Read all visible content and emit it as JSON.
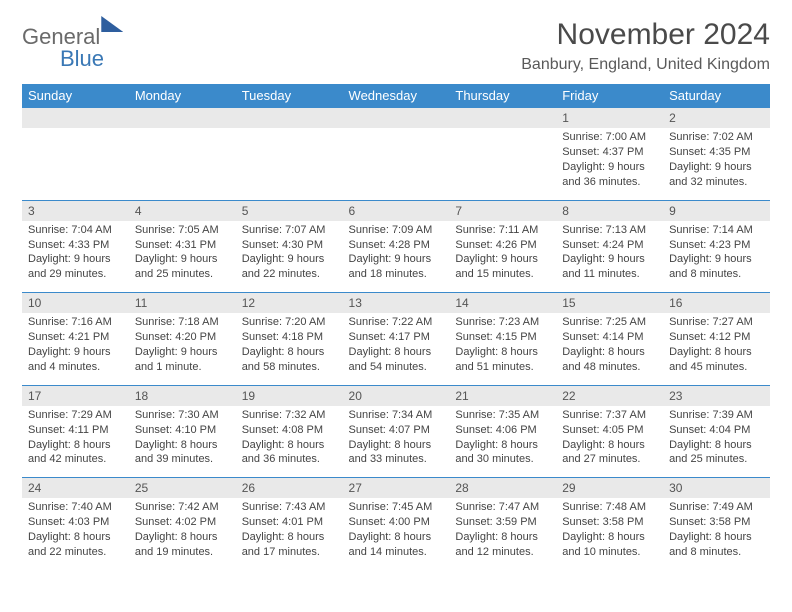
{
  "logo": {
    "word1": "General",
    "word2": "Blue"
  },
  "title": "November 2024",
  "location": "Banbury, England, United Kingdom",
  "colors": {
    "header_bg": "#3b8acb",
    "header_text": "#ffffff",
    "daynum_bg": "#e9e9e9",
    "rule": "#3b8acb",
    "body_text": "#444444",
    "logo_gray": "#6a6a6a",
    "logo_blue": "#3a78b5"
  },
  "typography": {
    "title_fontsize": 30,
    "location_fontsize": 16,
    "header_fontsize": 13,
    "daynum_fontsize": 12,
    "cell_fontsize": 11
  },
  "weekdays": [
    "Sunday",
    "Monday",
    "Tuesday",
    "Wednesday",
    "Thursday",
    "Friday",
    "Saturday"
  ],
  "weeks": [
    [
      null,
      null,
      null,
      null,
      null,
      {
        "n": "1",
        "sr": "Sunrise: 7:00 AM",
        "ss": "Sunset: 4:37 PM",
        "dl": "Daylight: 9 hours and 36 minutes."
      },
      {
        "n": "2",
        "sr": "Sunrise: 7:02 AM",
        "ss": "Sunset: 4:35 PM",
        "dl": "Daylight: 9 hours and 32 minutes."
      }
    ],
    [
      {
        "n": "3",
        "sr": "Sunrise: 7:04 AM",
        "ss": "Sunset: 4:33 PM",
        "dl": "Daylight: 9 hours and 29 minutes."
      },
      {
        "n": "4",
        "sr": "Sunrise: 7:05 AM",
        "ss": "Sunset: 4:31 PM",
        "dl": "Daylight: 9 hours and 25 minutes."
      },
      {
        "n": "5",
        "sr": "Sunrise: 7:07 AM",
        "ss": "Sunset: 4:30 PM",
        "dl": "Daylight: 9 hours and 22 minutes."
      },
      {
        "n": "6",
        "sr": "Sunrise: 7:09 AM",
        "ss": "Sunset: 4:28 PM",
        "dl": "Daylight: 9 hours and 18 minutes."
      },
      {
        "n": "7",
        "sr": "Sunrise: 7:11 AM",
        "ss": "Sunset: 4:26 PM",
        "dl": "Daylight: 9 hours and 15 minutes."
      },
      {
        "n": "8",
        "sr": "Sunrise: 7:13 AM",
        "ss": "Sunset: 4:24 PM",
        "dl": "Daylight: 9 hours and 11 minutes."
      },
      {
        "n": "9",
        "sr": "Sunrise: 7:14 AM",
        "ss": "Sunset: 4:23 PM",
        "dl": "Daylight: 9 hours and 8 minutes."
      }
    ],
    [
      {
        "n": "10",
        "sr": "Sunrise: 7:16 AM",
        "ss": "Sunset: 4:21 PM",
        "dl": "Daylight: 9 hours and 4 minutes."
      },
      {
        "n": "11",
        "sr": "Sunrise: 7:18 AM",
        "ss": "Sunset: 4:20 PM",
        "dl": "Daylight: 9 hours and 1 minute."
      },
      {
        "n": "12",
        "sr": "Sunrise: 7:20 AM",
        "ss": "Sunset: 4:18 PM",
        "dl": "Daylight: 8 hours and 58 minutes."
      },
      {
        "n": "13",
        "sr": "Sunrise: 7:22 AM",
        "ss": "Sunset: 4:17 PM",
        "dl": "Daylight: 8 hours and 54 minutes."
      },
      {
        "n": "14",
        "sr": "Sunrise: 7:23 AM",
        "ss": "Sunset: 4:15 PM",
        "dl": "Daylight: 8 hours and 51 minutes."
      },
      {
        "n": "15",
        "sr": "Sunrise: 7:25 AM",
        "ss": "Sunset: 4:14 PM",
        "dl": "Daylight: 8 hours and 48 minutes."
      },
      {
        "n": "16",
        "sr": "Sunrise: 7:27 AM",
        "ss": "Sunset: 4:12 PM",
        "dl": "Daylight: 8 hours and 45 minutes."
      }
    ],
    [
      {
        "n": "17",
        "sr": "Sunrise: 7:29 AM",
        "ss": "Sunset: 4:11 PM",
        "dl": "Daylight: 8 hours and 42 minutes."
      },
      {
        "n": "18",
        "sr": "Sunrise: 7:30 AM",
        "ss": "Sunset: 4:10 PM",
        "dl": "Daylight: 8 hours and 39 minutes."
      },
      {
        "n": "19",
        "sr": "Sunrise: 7:32 AM",
        "ss": "Sunset: 4:08 PM",
        "dl": "Daylight: 8 hours and 36 minutes."
      },
      {
        "n": "20",
        "sr": "Sunrise: 7:34 AM",
        "ss": "Sunset: 4:07 PM",
        "dl": "Daylight: 8 hours and 33 minutes."
      },
      {
        "n": "21",
        "sr": "Sunrise: 7:35 AM",
        "ss": "Sunset: 4:06 PM",
        "dl": "Daylight: 8 hours and 30 minutes."
      },
      {
        "n": "22",
        "sr": "Sunrise: 7:37 AM",
        "ss": "Sunset: 4:05 PM",
        "dl": "Daylight: 8 hours and 27 minutes."
      },
      {
        "n": "23",
        "sr": "Sunrise: 7:39 AM",
        "ss": "Sunset: 4:04 PM",
        "dl": "Daylight: 8 hours and 25 minutes."
      }
    ],
    [
      {
        "n": "24",
        "sr": "Sunrise: 7:40 AM",
        "ss": "Sunset: 4:03 PM",
        "dl": "Daylight: 8 hours and 22 minutes."
      },
      {
        "n": "25",
        "sr": "Sunrise: 7:42 AM",
        "ss": "Sunset: 4:02 PM",
        "dl": "Daylight: 8 hours and 19 minutes."
      },
      {
        "n": "26",
        "sr": "Sunrise: 7:43 AM",
        "ss": "Sunset: 4:01 PM",
        "dl": "Daylight: 8 hours and 17 minutes."
      },
      {
        "n": "27",
        "sr": "Sunrise: 7:45 AM",
        "ss": "Sunset: 4:00 PM",
        "dl": "Daylight: 8 hours and 14 minutes."
      },
      {
        "n": "28",
        "sr": "Sunrise: 7:47 AM",
        "ss": "Sunset: 3:59 PM",
        "dl": "Daylight: 8 hours and 12 minutes."
      },
      {
        "n": "29",
        "sr": "Sunrise: 7:48 AM",
        "ss": "Sunset: 3:58 PM",
        "dl": "Daylight: 8 hours and 10 minutes."
      },
      {
        "n": "30",
        "sr": "Sunrise: 7:49 AM",
        "ss": "Sunset: 3:58 PM",
        "dl": "Daylight: 8 hours and 8 minutes."
      }
    ]
  ]
}
